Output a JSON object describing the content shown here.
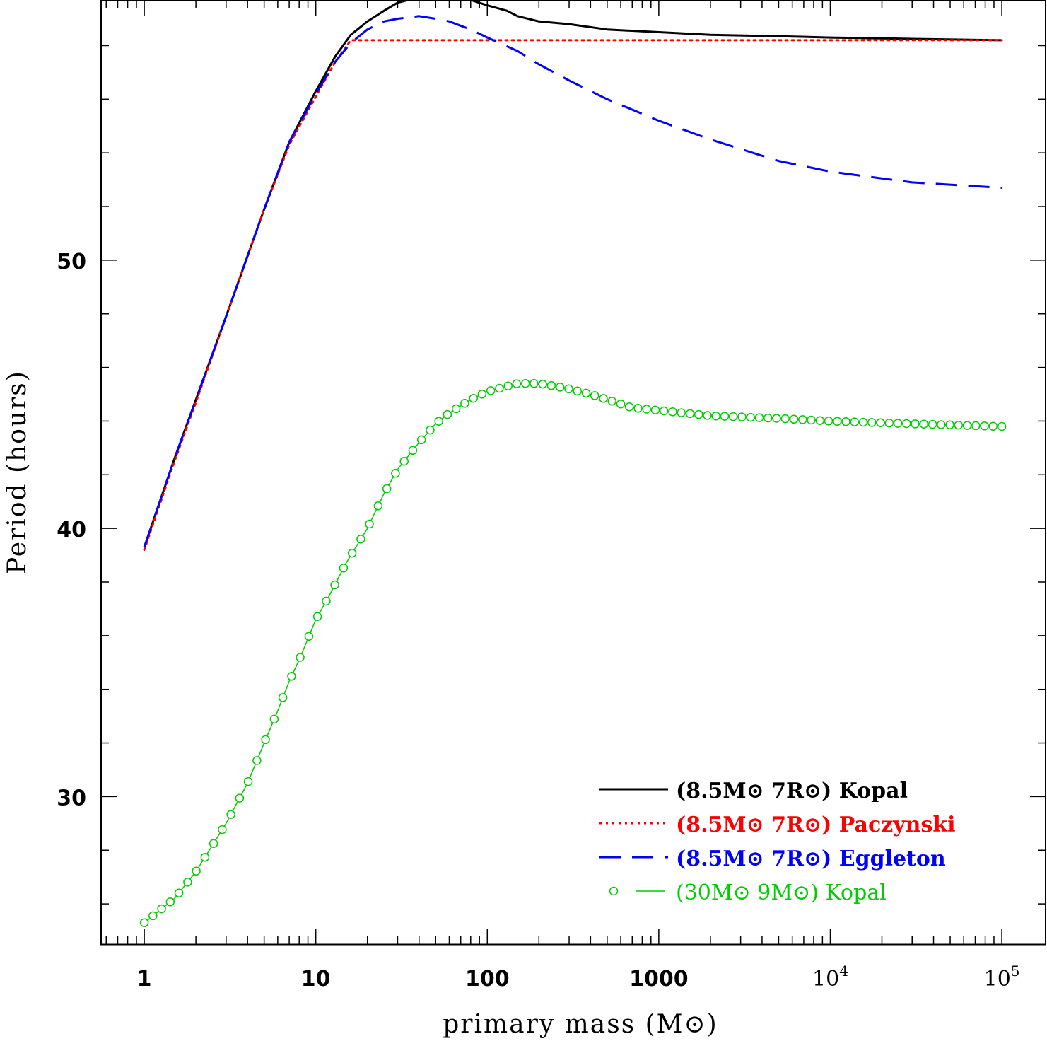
{
  "chart_data": {
    "type": "line",
    "title": "",
    "xlabel": "primary mass (M⊙)",
    "ylabel": "Period (hours)",
    "xscale": "log",
    "xlim": [
      0.56,
      180000
    ],
    "ylim": [
      24.5,
      59.7
    ],
    "x_ticks": [
      {
        "value": 1,
        "label": "1"
      },
      {
        "value": 10,
        "label": "10"
      },
      {
        "value": 100,
        "label": "100"
      },
      {
        "value": 1000,
        "label": "1000"
      },
      {
        "value": 10000,
        "label": "10",
        "exponent": "4"
      },
      {
        "value": 100000,
        "label": "10",
        "exponent": "5"
      }
    ],
    "y_ticks": [
      {
        "value": 30,
        "label": "30"
      },
      {
        "value": 40,
        "label": "40"
      },
      {
        "value": 50,
        "label": "50"
      }
    ],
    "legend_position": "bottom-right",
    "series": [
      {
        "name": "(8.5M⊙ 7R⊙) Kopal",
        "color": "#000000",
        "style": "solid",
        "x": [
          1,
          1.5,
          2,
          3,
          5,
          7,
          10,
          13,
          16,
          20,
          25,
          30,
          40,
          50,
          60,
          80,
          100,
          130,
          150,
          200,
          300,
          500,
          1000,
          2000,
          5000,
          10000,
          30000,
          100000
        ],
        "y": [
          39.3,
          42.6,
          44.8,
          47.9,
          51.9,
          54.4,
          56.3,
          57.6,
          58.4,
          58.9,
          59.3,
          59.6,
          59.8,
          59.9,
          59.9,
          59.7,
          59.5,
          59.3,
          59.1,
          58.9,
          58.8,
          58.6,
          58.5,
          58.4,
          58.35,
          58.3,
          58.25,
          58.2
        ]
      },
      {
        "name": "(8.5M⊙ 7R⊙) Paczynski",
        "color": "#ff0000",
        "style": "dotted",
        "x": [
          1,
          1.5,
          2,
          3,
          5,
          7,
          10,
          13,
          16,
          20,
          30,
          50,
          100,
          1000,
          10000,
          100000
        ],
        "y": [
          39.2,
          42.5,
          44.7,
          47.9,
          51.9,
          54.3,
          56.1,
          57.4,
          58.2,
          58.2,
          58.2,
          58.2,
          58.2,
          58.2,
          58.2,
          58.2
        ]
      },
      {
        "name": "(8.5M⊙ 7R⊙) Eggleton",
        "color": "#0000ff",
        "style": "dashed",
        "x": [
          1,
          1.5,
          2,
          3,
          5,
          7,
          10,
          13,
          16,
          20,
          25,
          30,
          40,
          50,
          60,
          80,
          100,
          150,
          200,
          300,
          500,
          1000,
          2000,
          5000,
          10000,
          30000,
          100000
        ],
        "y": [
          39.3,
          42.6,
          44.8,
          47.9,
          51.9,
          54.4,
          56.2,
          57.4,
          58.1,
          58.6,
          58.9,
          59.0,
          59.1,
          59.0,
          58.9,
          58.6,
          58.3,
          57.8,
          57.3,
          56.7,
          56.0,
          55.2,
          54.5,
          53.7,
          53.3,
          52.9,
          52.7
        ]
      },
      {
        "name": "(30M⊙ 9M⊙) Kopal",
        "color": "#00cc00",
        "style": "line-with-circles",
        "x": [
          1,
          1.5,
          2,
          3,
          4,
          5,
          6,
          7,
          8,
          10,
          12,
          15,
          20,
          25,
          30,
          40,
          50,
          60,
          80,
          100,
          130,
          150,
          200,
          250,
          300,
          400,
          500,
          700,
          1000,
          2000,
          5000,
          10000,
          30000,
          100000
        ],
        "y": [
          25.3,
          26.2,
          27.2,
          29.0,
          30.5,
          32.0,
          33.2,
          34.3,
          35.1,
          36.6,
          37.5,
          38.7,
          40.0,
          41.3,
          42.2,
          43.2,
          43.9,
          44.3,
          44.8,
          45.1,
          45.3,
          45.4,
          45.4,
          45.3,
          45.2,
          45.0,
          44.8,
          44.5,
          44.4,
          44.2,
          44.1,
          44.0,
          43.9,
          43.8
        ]
      }
    ]
  }
}
